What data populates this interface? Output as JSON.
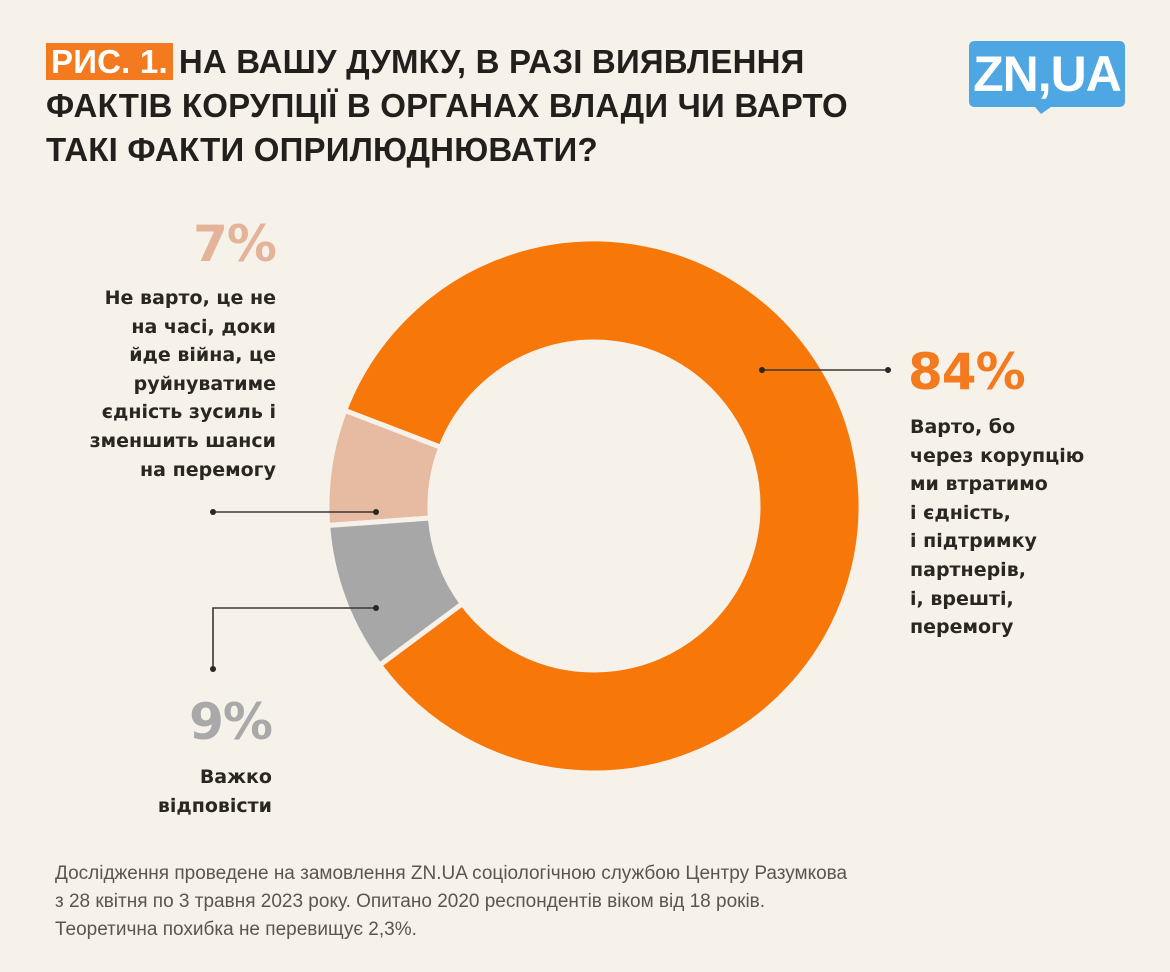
{
  "header": {
    "figure_tag": "РИС. 1.",
    "title": "НА ВАШУ ДУМКУ, В РАЗІ ВИЯВЛЕННЯ ФАКТІВ КОРУПЦІЇ В ОРГАНАХ ВЛАДИ ЧИ ВАРТО ТАКІ ФАКТИ ОПРИЛЮДНЮВАТИ?"
  },
  "logo": {
    "text": "ZN,UA",
    "color": "#4ea6e3"
  },
  "colors": {
    "background": "#f6f2ea",
    "accent": "#f47a1f",
    "orange": "#f77708",
    "peach": "#e6bba1",
    "gray": "#a7a7a7"
  },
  "chart_data": {
    "type": "pie",
    "subtype": "donut",
    "title": "НА ВАШУ ДУМКУ, В РАЗІ ВИЯВЛЕННЯ ФАКТІВ КОРУПЦІЇ В ОРГАНАХ ВЛАДИ ЧИ ВАРТО ТАКІ ФАКТИ ОПРИЛЮДНЮВАТИ?",
    "unit": "%",
    "slices": [
      {
        "key": "yes",
        "value": 84,
        "label_value": "84%",
        "label_lines": [
          "Варто, бо",
          "через корупцію",
          "ми втратимо",
          "і єдність,",
          "і підтримку",
          "партнерів,",
          "і, врешті,",
          "перемогу"
        ],
        "color": "#f77708",
        "value_color": "#f47a1f"
      },
      {
        "key": "no",
        "value": 7,
        "label_value": "7%",
        "label_lines": [
          "Не варто, це не",
          "на часі, доки",
          "йде війна, це",
          "руйнуватиме",
          "єдність зусиль і",
          "зменшить шанси",
          "на перемогу"
        ],
        "color": "#e6bba1",
        "value_color": "#e3b49a"
      },
      {
        "key": "hard",
        "value": 9,
        "label_value": "9%",
        "label_lines": [
          "Важко",
          "відповісти"
        ],
        "color": "#a7a7a7",
        "value_color": "#a9a9a9"
      }
    ]
  },
  "footnote": {
    "lines": [
      "Дослідження проведене на замовлення ZN.UA соціологічною службою Центру Разумкова",
      "з 28 квітня по 3 травня 2023 року. Опитано 2020 респондентів віком від 18 років.",
      "Теоретична похибка не перевищує 2,3%."
    ]
  }
}
